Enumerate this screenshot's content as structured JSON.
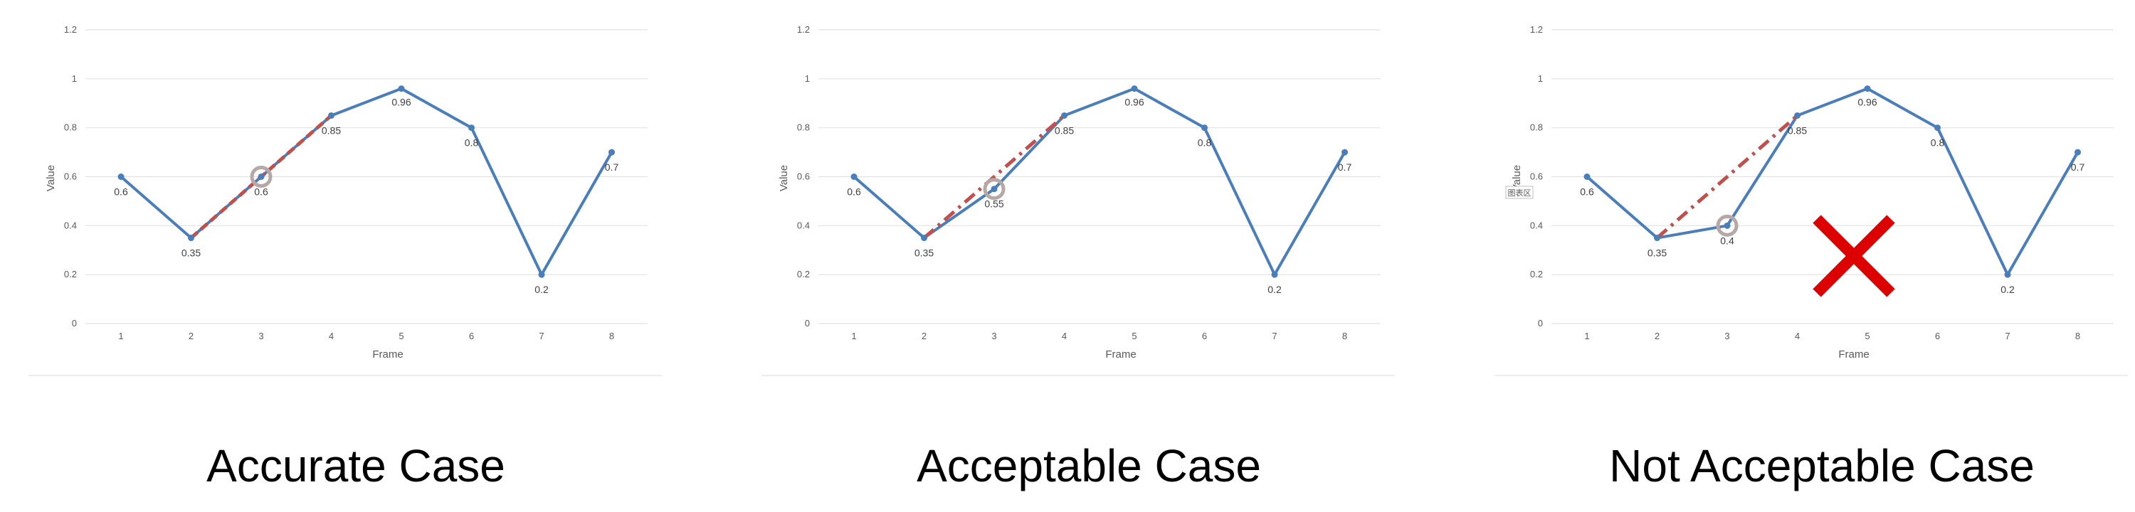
{
  "colors": {
    "line": "#4a7ebb",
    "dash": "#c0504d",
    "grid": "#e2e2e2",
    "circle": "#b7a8a8",
    "cross": "#dd0000",
    "text": "#595959"
  },
  "chart_data": [
    {
      "type": "line",
      "caption": "Accurate Case",
      "xlabel": "Frame",
      "ylabel": "Value",
      "x": [
        1,
        2,
        3,
        4,
        5,
        6,
        7,
        8
      ],
      "series": [
        {
          "values": [
            0.6,
            0.35,
            0.6,
            0.85,
            0.96,
            0.8,
            0.2,
            0.7
          ]
        }
      ],
      "data_labels": [
        "0.6",
        "0.35",
        "0.6",
        "0.85",
        "0.96",
        "0.8",
        "0.2",
        "0.7"
      ],
      "yticks": [
        "0",
        "0.2",
        "0.4",
        "0.6",
        "0.8",
        "1",
        "1.2"
      ],
      "ylim": [
        0,
        1.2
      ],
      "grid": true,
      "reference_line": {
        "from": [
          2,
          0.35
        ],
        "to": [
          4,
          0.85
        ],
        "style": "dash"
      },
      "highlight_frame": 3,
      "tag": "",
      "rejected": false
    },
    {
      "type": "line",
      "caption": "Acceptable Case",
      "xlabel": "Frame",
      "ylabel": "Value",
      "x": [
        1,
        2,
        3,
        4,
        5,
        6,
        7,
        8
      ],
      "series": [
        {
          "values": [
            0.6,
            0.35,
            0.55,
            0.85,
            0.96,
            0.8,
            0.2,
            0.7
          ]
        }
      ],
      "data_labels": [
        "0.6",
        "0.35",
        "0.55",
        "0.85",
        "0.96",
        "0.8",
        "0.2",
        "0.7"
      ],
      "yticks": [
        "0",
        "0.2",
        "0.4",
        "0.6",
        "0.8",
        "1",
        "1.2"
      ],
      "ylim": [
        0,
        1.2
      ],
      "grid": true,
      "reference_line": {
        "from": [
          2,
          0.35
        ],
        "to": [
          4,
          0.85
        ],
        "style": "dash-dot"
      },
      "highlight_frame": 3,
      "tag": "",
      "rejected": false
    },
    {
      "type": "line",
      "caption": "Not Acceptable Case",
      "xlabel": "Frame",
      "ylabel": "Value",
      "x": [
        1,
        2,
        3,
        4,
        5,
        6,
        7,
        8
      ],
      "series": [
        {
          "values": [
            0.6,
            0.35,
            0.4,
            0.85,
            0.96,
            0.8,
            0.2,
            0.7
          ]
        }
      ],
      "data_labels": [
        "0.6",
        "0.35",
        "0.4",
        "0.85",
        "0.96",
        "0.8",
        "0.2",
        "0.7"
      ],
      "yticks": [
        "0",
        "0.2",
        "0.4",
        "0.6",
        "0.8",
        "1",
        "1.2"
      ],
      "ylim": [
        0,
        1.2
      ],
      "grid": true,
      "reference_line": {
        "from": [
          2,
          0.35
        ],
        "to": [
          4,
          0.85
        ],
        "style": "dash-dot"
      },
      "highlight_frame": 3,
      "tag": "图表区",
      "rejected": true
    }
  ]
}
